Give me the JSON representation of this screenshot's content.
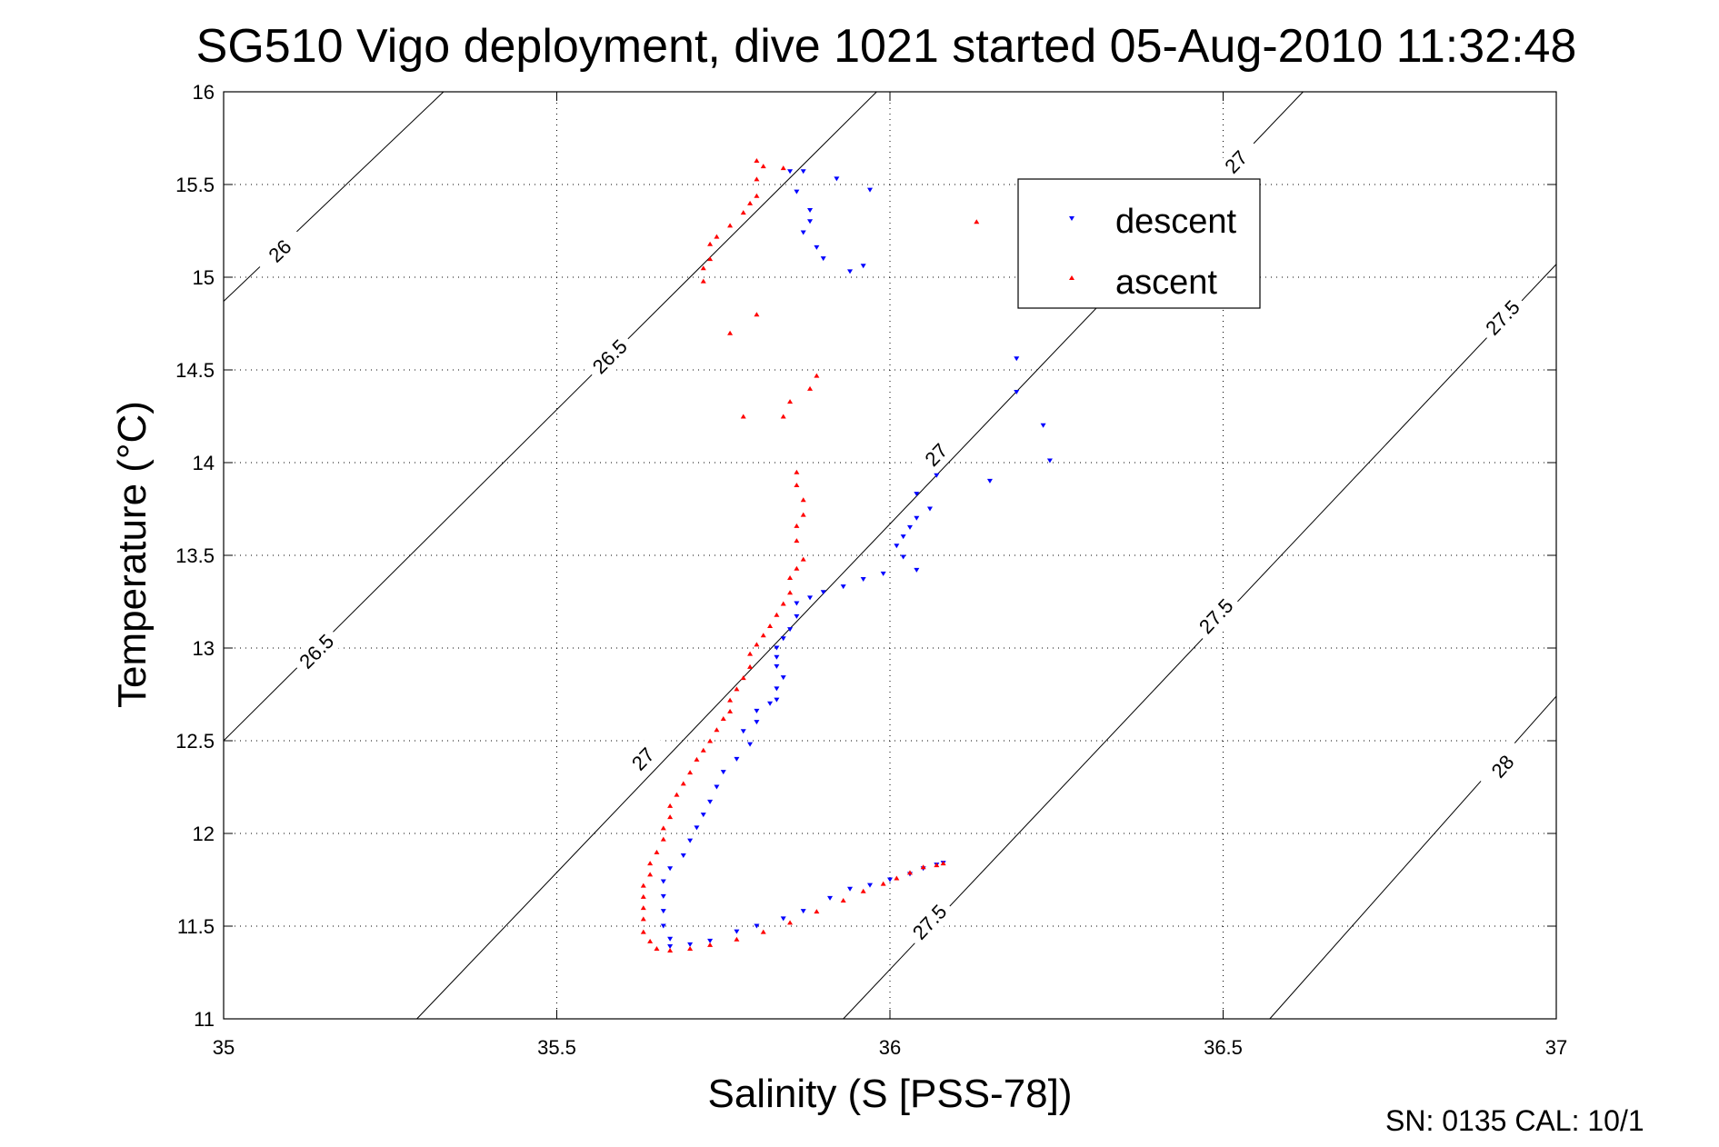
{
  "chart_data": {
    "type": "scatter",
    "title": "SG510 Vigo deployment, dive 1021 started 05-Aug-2010 11:32:48",
    "xlabel": "Salinity (S [PSS-78])",
    "ylabel": "Temperature (°C)",
    "xlim": [
      35,
      37
    ],
    "ylim": [
      11,
      16
    ],
    "grid": true,
    "x_ticks": [
      "35",
      "35.5",
      "36",
      "36.5",
      "37"
    ],
    "y_ticks": [
      "11",
      "11.5",
      "12",
      "12.5",
      "13",
      "13.5",
      "14",
      "14.5",
      "15",
      "15.5",
      "16"
    ],
    "legend_position": "top-right",
    "footer": "SN: 0135  CAL: 10/1",
    "density_contours": [
      {
        "s0": 35.0,
        "t0": 14.87,
        "s1": 35.33,
        "t1": 16.0,
        "labels": [
          {
            "text": "26",
            "s": 35.085,
            "t": 15.14
          }
        ]
      },
      {
        "s0": 35.0,
        "t0": 12.5,
        "s1": 35.98,
        "t1": 16.0,
        "labels": [
          {
            "text": "26.5",
            "s": 35.14,
            "t": 12.98
          },
          {
            "text": "26.5",
            "s": 35.58,
            "t": 14.57
          }
        ]
      },
      {
        "s0": 35.29,
        "t0": 11.0,
        "s1": 36.62,
        "t1": 16.0,
        "labels": [
          {
            "text": "27",
            "s": 35.63,
            "t": 12.4
          },
          {
            "text": "27",
            "s": 36.07,
            "t": 14.04
          },
          {
            "text": "27",
            "s": 36.52,
            "t": 15.62
          }
        ]
      },
      {
        "s0": 35.93,
        "t0": 11.0,
        "s1": 37.0,
        "t1": 15.07,
        "labels": [
          {
            "text": "27.5",
            "s": 36.06,
            "t": 11.52
          },
          {
            "text": "27.5",
            "s": 36.49,
            "t": 13.17
          },
          {
            "text": "27.5",
            "s": 36.92,
            "t": 14.78
          }
        ]
      },
      {
        "s0": 36.57,
        "t0": 11.0,
        "s1": 37.0,
        "t1": 12.74,
        "labels": [
          {
            "text": "28",
            "s": 36.92,
            "t": 12.36
          }
        ]
      }
    ],
    "series": [
      {
        "name": "descent",
        "color": "#0000ff",
        "marker": "triangle-down",
        "points": [
          [
            35.85,
            15.57
          ],
          [
            35.87,
            15.57
          ],
          [
            35.92,
            15.53
          ],
          [
            35.97,
            15.47
          ],
          [
            35.86,
            15.46
          ],
          [
            35.88,
            15.36
          ],
          [
            35.88,
            15.3
          ],
          [
            35.87,
            15.24
          ],
          [
            35.89,
            15.16
          ],
          [
            35.9,
            15.1
          ],
          [
            35.94,
            15.03
          ],
          [
            35.96,
            15.06
          ],
          [
            36.19,
            14.56
          ],
          [
            36.19,
            14.38
          ],
          [
            36.23,
            14.2
          ],
          [
            36.24,
            14.01
          ],
          [
            36.15,
            13.9
          ],
          [
            36.07,
            13.93
          ],
          [
            36.04,
            13.83
          ],
          [
            36.06,
            13.75
          ],
          [
            36.04,
            13.7
          ],
          [
            36.03,
            13.65
          ],
          [
            36.02,
            13.6
          ],
          [
            36.01,
            13.55
          ],
          [
            36.02,
            13.49
          ],
          [
            36.04,
            13.42
          ],
          [
            35.99,
            13.4
          ],
          [
            35.96,
            13.37
          ],
          [
            35.93,
            13.33
          ],
          [
            35.9,
            13.3
          ],
          [
            35.88,
            13.27
          ],
          [
            35.86,
            13.24
          ],
          [
            35.86,
            13.17
          ],
          [
            35.85,
            13.1
          ],
          [
            35.84,
            13.05
          ],
          [
            35.83,
            13.0
          ],
          [
            35.83,
            12.95
          ],
          [
            35.83,
            12.9
          ],
          [
            35.84,
            12.84
          ],
          [
            35.83,
            12.78
          ],
          [
            35.83,
            12.72
          ],
          [
            35.82,
            12.7
          ],
          [
            35.8,
            12.66
          ],
          [
            35.8,
            12.6
          ],
          [
            35.78,
            12.55
          ],
          [
            35.79,
            12.48
          ],
          [
            35.77,
            12.4
          ],
          [
            35.75,
            12.33
          ],
          [
            35.74,
            12.25
          ],
          [
            35.73,
            12.17
          ],
          [
            35.72,
            12.1
          ],
          [
            35.71,
            12.03
          ],
          [
            35.7,
            11.96
          ],
          [
            35.69,
            11.88
          ],
          [
            35.67,
            11.81
          ],
          [
            35.66,
            11.74
          ],
          [
            35.66,
            11.66
          ],
          [
            35.66,
            11.58
          ],
          [
            35.66,
            11.5
          ],
          [
            35.67,
            11.43
          ],
          [
            35.67,
            11.39
          ],
          [
            35.7,
            11.4
          ],
          [
            35.73,
            11.42
          ],
          [
            35.77,
            11.47
          ],
          [
            35.8,
            11.5
          ],
          [
            35.84,
            11.54
          ],
          [
            35.87,
            11.58
          ],
          [
            35.91,
            11.65
          ],
          [
            35.94,
            11.7
          ],
          [
            35.97,
            11.72
          ],
          [
            36.0,
            11.75
          ],
          [
            36.03,
            11.78
          ],
          [
            36.05,
            11.81
          ],
          [
            36.07,
            11.83
          ],
          [
            36.08,
            11.84
          ]
        ]
      },
      {
        "name": "ascent",
        "color": "#ff0000",
        "marker": "triangle-up",
        "points": [
          [
            35.8,
            15.63
          ],
          [
            35.81,
            15.6
          ],
          [
            35.84,
            15.59
          ],
          [
            35.8,
            15.53
          ],
          [
            35.8,
            15.44
          ],
          [
            35.79,
            15.4
          ],
          [
            35.78,
            15.35
          ],
          [
            35.76,
            15.28
          ],
          [
            35.74,
            15.22
          ],
          [
            35.73,
            15.18
          ],
          [
            35.73,
            15.1
          ],
          [
            35.72,
            15.05
          ],
          [
            35.72,
            14.98
          ],
          [
            36.13,
            15.3
          ],
          [
            35.8,
            14.8
          ],
          [
            35.76,
            14.7
          ],
          [
            35.89,
            14.47
          ],
          [
            35.88,
            14.4
          ],
          [
            35.85,
            14.33
          ],
          [
            35.84,
            14.25
          ],
          [
            35.78,
            14.25
          ],
          [
            35.86,
            13.95
          ],
          [
            35.86,
            13.88
          ],
          [
            35.87,
            13.8
          ],
          [
            35.87,
            13.72
          ],
          [
            35.86,
            13.66
          ],
          [
            35.86,
            13.58
          ],
          [
            35.87,
            13.48
          ],
          [
            35.86,
            13.43
          ],
          [
            35.85,
            13.38
          ],
          [
            35.85,
            13.3
          ],
          [
            35.84,
            13.24
          ],
          [
            35.83,
            13.18
          ],
          [
            35.82,
            13.12
          ],
          [
            35.81,
            13.07
          ],
          [
            35.8,
            13.02
          ],
          [
            35.79,
            12.97
          ],
          [
            35.79,
            12.9
          ],
          [
            35.78,
            12.84
          ],
          [
            35.77,
            12.78
          ],
          [
            35.76,
            12.72
          ],
          [
            35.76,
            12.66
          ],
          [
            35.75,
            12.62
          ],
          [
            35.74,
            12.56
          ],
          [
            35.73,
            12.5
          ],
          [
            35.72,
            12.45
          ],
          [
            35.71,
            12.4
          ],
          [
            35.7,
            12.33
          ],
          [
            35.69,
            12.27
          ],
          [
            35.68,
            12.21
          ],
          [
            35.67,
            12.15
          ],
          [
            35.67,
            12.09
          ],
          [
            35.66,
            12.03
          ],
          [
            35.66,
            11.97
          ],
          [
            35.65,
            11.9
          ],
          [
            35.64,
            11.84
          ],
          [
            35.64,
            11.78
          ],
          [
            35.63,
            11.72
          ],
          [
            35.63,
            11.66
          ],
          [
            35.63,
            11.6
          ],
          [
            35.63,
            11.54
          ],
          [
            35.63,
            11.47
          ],
          [
            35.64,
            11.42
          ],
          [
            35.65,
            11.38
          ],
          [
            35.67,
            11.37
          ],
          [
            35.7,
            11.38
          ],
          [
            35.73,
            11.4
          ],
          [
            35.77,
            11.43
          ],
          [
            35.81,
            11.47
          ],
          [
            35.85,
            11.52
          ],
          [
            35.89,
            11.58
          ],
          [
            35.93,
            11.64
          ],
          [
            35.96,
            11.69
          ],
          [
            35.99,
            11.73
          ],
          [
            36.01,
            11.76
          ],
          [
            36.03,
            11.79
          ],
          [
            36.05,
            11.82
          ],
          [
            36.07,
            11.83
          ],
          [
            36.08,
            11.84
          ]
        ]
      }
    ]
  }
}
